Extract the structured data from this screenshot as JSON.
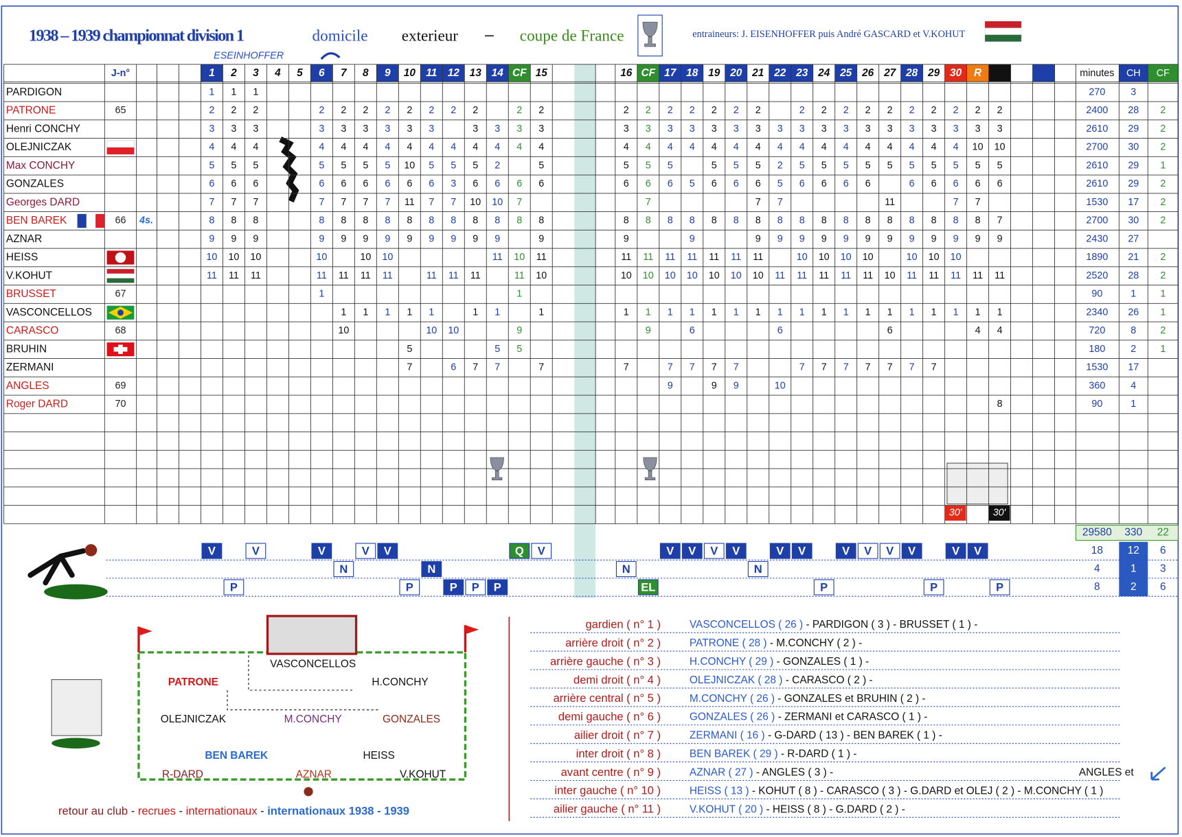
{
  "header": {
    "title": "1938 – 1939 championnat division 1",
    "domicile": "domicile",
    "exterieur": "exterieur",
    "dash": "–",
    "coupe": "coupe de France",
    "coaches": "entraineurs: J. EISENHOFFER puis André GASCARD et V.KOHUT",
    "coach_note": "ESEINHOFFER"
  },
  "table": {
    "jn_header": "J-n°",
    "stat_headers": [
      "minutes",
      "CH",
      "CF"
    ],
    "columns": [
      {
        "label": "1",
        "fill": "#1e3fa8",
        "text": "#1e3fa8",
        "box": "#1e3fa8"
      },
      {
        "label": "2"
      },
      {
        "label": "3"
      },
      {
        "label": "4"
      },
      {
        "label": "5"
      },
      {
        "label": "6",
        "fill": "#1e3fa8",
        "text": "#1e3fa8",
        "box": "#1e3fa8"
      },
      {
        "label": "7"
      },
      {
        "label": "8"
      },
      {
        "label": "9",
        "fill": "#1e3fa8",
        "text": "#1e3fa8",
        "box": "#1e3fa8"
      },
      {
        "label": "10"
      },
      {
        "label": "11",
        "fill": "#1e3fa8",
        "text": "#1e3fa8",
        "box": "#1e3fa8"
      },
      {
        "label": "12",
        "fill": "#1e3fa8",
        "text": "#1e3fa8",
        "box": "#1e3fa8"
      },
      {
        "label": "13"
      },
      {
        "label": "14",
        "fill": "#1e3fa8",
        "text": "#1e3fa8",
        "box": "#1e3fa8"
      },
      {
        "label": "CF",
        "fill": "#2f8f2f",
        "text": "#2f8f2f",
        "box": "#2f8f2f"
      },
      {
        "label": "15"
      },
      {
        "label": "16"
      },
      {
        "label": "CF",
        "fill": "#2f8f2f",
        "text": "#2f8f2f",
        "box": "#2f8f2f"
      },
      {
        "label": "17",
        "fill": "#1e3fa8",
        "text": "#1e3fa8",
        "box": "#1e3fa8"
      },
      {
        "label": "18",
        "fill": "#1e3fa8",
        "text": "#1e3fa8",
        "box": "#1e3fa8"
      },
      {
        "label": "19"
      },
      {
        "label": "20",
        "fill": "#1e3fa8",
        "text": "#1e3fa8",
        "box": "#1e3fa8"
      },
      {
        "label": "21"
      },
      {
        "label": "22",
        "fill": "#1e3fa8",
        "text": "#1e3fa8",
        "box": "#1e3fa8"
      },
      {
        "label": "23",
        "fill": "#1e3fa8",
        "text": "#1e3fa8",
        "box": "#1e3fa8"
      },
      {
        "label": "24"
      },
      {
        "label": "25",
        "fill": "#1e3fa8",
        "text": "#1e3fa8",
        "box": "#1e3fa8"
      },
      {
        "label": "26"
      },
      {
        "label": "27"
      },
      {
        "label": "28",
        "fill": "#1e3fa8",
        "text": "#1e3fa8",
        "box": "#1e3fa8"
      },
      {
        "label": "29"
      },
      {
        "label": "30",
        "fill": "#e22a1a",
        "text": "#1e3fa8",
        "box": "#1e3fa8"
      },
      {
        "label": "R",
        "fill": "#f07b12",
        "box": "#1e3fa8"
      },
      {
        "label": null,
        "fill": "#111111"
      }
    ],
    "players": [
      {
        "name": "PARDIGON",
        "color": "#111",
        "values": [
          1,
          1,
          1,
          null,
          null,
          null,
          null,
          null,
          null,
          null,
          null,
          null,
          null,
          null,
          null,
          null,
          null,
          null,
          null,
          null,
          null,
          null,
          null,
          null,
          null,
          null,
          null,
          null,
          null,
          null,
          null,
          null,
          null,
          null
        ],
        "minutes": 270,
        "ch": 3
      },
      {
        "name": "PATRONE",
        "color": "#d01a1a",
        "jn": 65,
        "values": [
          2,
          2,
          2,
          null,
          null,
          2,
          2,
          2,
          2,
          2,
          2,
          2,
          2,
          null,
          2,
          2,
          2,
          2,
          2,
          2,
          2,
          2,
          2,
          null,
          2,
          2,
          2,
          2,
          2,
          2,
          2,
          2,
          2,
          2
        ],
        "minutes": 2400,
        "ch": 28,
        "cf": 2
      },
      {
        "name": "Henri CONCHY",
        "color": "#111",
        "values": [
          3,
          3,
          3,
          null,
          null,
          3,
          3,
          3,
          3,
          3,
          3,
          null,
          3,
          3,
          3,
          3,
          3,
          3,
          3,
          3,
          3,
          3,
          3,
          3,
          3,
          3,
          3,
          3,
          3,
          3,
          3,
          3,
          3,
          3
        ],
        "minutes": 2610,
        "ch": 29,
        "cf": 2
      },
      {
        "name": "OLEJNICZAK",
        "color": "#111",
        "values": [
          4,
          4,
          4,
          null,
          null,
          4,
          4,
          4,
          4,
          4,
          4,
          4,
          4,
          4,
          4,
          4,
          4,
          4,
          4,
          4,
          4,
          4,
          4,
          4,
          4,
          4,
          4,
          4,
          4,
          4,
          4,
          4,
          10,
          10
        ],
        "minutes": 2700,
        "ch": 30,
        "cf": 2
      },
      {
        "name": "Max CONCHY",
        "color": "#8b1a3a",
        "values": [
          5,
          5,
          5,
          null,
          null,
          5,
          5,
          5,
          5,
          10,
          5,
          5,
          5,
          2,
          null,
          5,
          5,
          5,
          5,
          null,
          5,
          5,
          5,
          2,
          5,
          5,
          5,
          5,
          5,
          5,
          5,
          5,
          5,
          5
        ],
        "minutes": 2610,
        "ch": 29,
        "cf": 1
      },
      {
        "name": "GONZALES",
        "color": "#111",
        "values": [
          6,
          6,
          6,
          null,
          null,
          6,
          6,
          6,
          6,
          6,
          6,
          3,
          6,
          6,
          6,
          6,
          6,
          6,
          6,
          5,
          6,
          6,
          6,
          5,
          6,
          6,
          6,
          6,
          null,
          6,
          6,
          6,
          6,
          6
        ],
        "minutes": 2610,
        "ch": 29,
        "cf": 2
      },
      {
        "name": "Georges DARD",
        "color": "#8b1a3a",
        "values": [
          7,
          7,
          7,
          null,
          null,
          7,
          7,
          7,
          7,
          11,
          7,
          7,
          10,
          10,
          7,
          null,
          null,
          7,
          null,
          null,
          null,
          null,
          7,
          7,
          null,
          null,
          null,
          null,
          11,
          null,
          null,
          7,
          7,
          null
        ],
        "minutes": 1530,
        "ch": 17,
        "cf": 2
      },
      {
        "name": "BEN BAREK",
        "color": "#d01a1a",
        "jn": 66,
        "extra": "4s.",
        "values": [
          8,
          8,
          8,
          null,
          null,
          8,
          8,
          8,
          8,
          8,
          8,
          8,
          8,
          8,
          8,
          8,
          8,
          8,
          8,
          8,
          8,
          8,
          8,
          8,
          8,
          8,
          8,
          8,
          8,
          8,
          8,
          8,
          8,
          7
        ],
        "minutes": 2700,
        "ch": 30,
        "cf": 2
      },
      {
        "name": "AZNAR",
        "color": "#111",
        "values": [
          9,
          9,
          9,
          null,
          null,
          9,
          9,
          9,
          9,
          9,
          9,
          9,
          9,
          9,
          null,
          9,
          9,
          null,
          null,
          9,
          null,
          null,
          9,
          9,
          9,
          9,
          9,
          9,
          9,
          9,
          9,
          9,
          9,
          9
        ],
        "minutes": 2430,
        "ch": 27
      },
      {
        "name": "HEISS",
        "color": "#111",
        "values": [
          10,
          10,
          10,
          null,
          null,
          10,
          null,
          10,
          10,
          null,
          null,
          null,
          null,
          11,
          10,
          11,
          11,
          11,
          11,
          11,
          11,
          11,
          11,
          null,
          10,
          10,
          10,
          10,
          null,
          10,
          10,
          10,
          null,
          null
        ],
        "minutes": 1890,
        "ch": 21,
        "cf": 2
      },
      {
        "name": "V.KOHUT",
        "color": "#111",
        "values": [
          11,
          11,
          11,
          null,
          null,
          11,
          11,
          11,
          11,
          null,
          11,
          11,
          11,
          null,
          11,
          10,
          10,
          10,
          10,
          10,
          10,
          10,
          10,
          11,
          11,
          11,
          11,
          11,
          10,
          11,
          11,
          11,
          11,
          11
        ],
        "minutes": 2520,
        "ch": 28,
        "cf": 2
      },
      {
        "name": "BRUSSET",
        "color": "#d01a1a",
        "jn": 67,
        "values": [
          null,
          null,
          null,
          null,
          null,
          1,
          null,
          null,
          null,
          null,
          null,
          null,
          null,
          null,
          1,
          null,
          null,
          null,
          null,
          null,
          null,
          null,
          null,
          null,
          null,
          null,
          null,
          null,
          null,
          null,
          null,
          null,
          null,
          null
        ],
        "minutes": 90,
        "ch": 1,
        "cf": 1
      },
      {
        "name": "VASCONCELLOS",
        "color": "#111",
        "values": [
          null,
          null,
          null,
          null,
          null,
          null,
          1,
          1,
          1,
          1,
          1,
          null,
          1,
          1,
          null,
          1,
          1,
          1,
          1,
          1,
          1,
          1,
          1,
          1,
          1,
          1,
          1,
          1,
          1,
          1,
          1,
          1,
          1,
          1
        ],
        "minutes": 2340,
        "ch": 26,
        "cf": 1
      },
      {
        "name": "CARASCO",
        "color": "#d01a1a",
        "jn": 68,
        "values": [
          null,
          null,
          null,
          null,
          null,
          null,
          10,
          null,
          null,
          null,
          10,
          10,
          null,
          null,
          9,
          null,
          null,
          9,
          null,
          6,
          null,
          null,
          null,
          6,
          null,
          null,
          null,
          null,
          6,
          null,
          null,
          null,
          4,
          4
        ],
        "minutes": 720,
        "ch": 8,
        "cf": 2
      },
      {
        "name": "BRUHIN",
        "color": "#111",
        "values": [
          null,
          null,
          null,
          null,
          null,
          null,
          null,
          null,
          null,
          5,
          null,
          null,
          null,
          5,
          5,
          null,
          null,
          null,
          null,
          null,
          null,
          null,
          null,
          null,
          null,
          null,
          null,
          null,
          null,
          null,
          null,
          null,
          null,
          null
        ],
        "minutes": 180,
        "ch": 2,
        "cf": 1
      },
      {
        "name": "ZERMANI",
        "color": "#111",
        "values": [
          null,
          null,
          null,
          null,
          null,
          null,
          null,
          null,
          null,
          7,
          null,
          6,
          7,
          7,
          null,
          7,
          7,
          null,
          7,
          7,
          7,
          7,
          null,
          null,
          7,
          7,
          7,
          7,
          7,
          7,
          7,
          null,
          null,
          null
        ],
        "minutes": 1530,
        "ch": 17
      },
      {
        "name": "ANGLES",
        "color": "#d01a1a",
        "jn": 69,
        "values": [
          null,
          null,
          null,
          null,
          null,
          null,
          null,
          null,
          null,
          null,
          null,
          null,
          null,
          null,
          null,
          null,
          null,
          null,
          9,
          null,
          9,
          9,
          null,
          10,
          null,
          null,
          null,
          null,
          null,
          null,
          null,
          null,
          null,
          null
        ],
        "minutes": 360,
        "ch": 4
      },
      {
        "name": "Roger DARD",
        "color": "#d01a1a",
        "jn": 70,
        "values": [
          null,
          null,
          null,
          null,
          null,
          null,
          null,
          null,
          null,
          null,
          null,
          null,
          null,
          null,
          null,
          null,
          null,
          null,
          null,
          null,
          null,
          null,
          null,
          null,
          null,
          null,
          null,
          null,
          null,
          null,
          null,
          null,
          null,
          8
        ],
        "minutes": 90,
        "ch": 1
      }
    ],
    "extra_time": [
      "30'",
      "30'"
    ],
    "totals": [
      29580,
      330,
      22
    ]
  },
  "results": {
    "top": [
      "V",
      null,
      "V",
      null,
      null,
      "V",
      null,
      "V",
      "V",
      null,
      null,
      null,
      null,
      null,
      "Q",
      "V",
      null,
      null,
      "V",
      "V",
      "V",
      "V",
      null,
      "V",
      "V",
      null,
      "V",
      "V",
      "V",
      "V",
      null,
      "V",
      "V",
      null
    ],
    "middle": [
      null,
      null,
      null,
      null,
      null,
      null,
      "N",
      null,
      null,
      null,
      "N",
      null,
      null,
      null,
      null,
      null,
      "N",
      null,
      null,
      null,
      null,
      null,
      "N",
      null,
      null,
      null,
      null,
      null,
      null,
      null,
      null,
      null,
      null,
      null
    ],
    "bottom": [
      null,
      "P",
      null,
      null,
      null,
      null,
      null,
      null,
      null,
      "P",
      null,
      "P",
      "P",
      "P",
      null,
      null,
      null,
      "EL",
      null,
      null,
      null,
      null,
      null,
      null,
      null,
      "P",
      null,
      null,
      null,
      null,
      "P",
      null,
      null,
      "P"
    ],
    "stats": [
      [
        18,
        12,
        6
      ],
      [
        4,
        1,
        3
      ],
      [
        8,
        2,
        6
      ]
    ]
  },
  "formation": [
    {
      "text": "VASCONCELLOS",
      "color": "#111"
    },
    {
      "text": "PATRONE",
      "color": "#d01a1a"
    },
    {
      "text": "H.CONCHY",
      "color": "#111"
    },
    {
      "text": "OLEJNICZAK",
      "color": "#111"
    },
    {
      "text": "M.CONCHY",
      "color": "#7a2a7a"
    },
    {
      "text": "GONZALES",
      "color": "#8b2a1a"
    },
    {
      "text": "BEN BAREK",
      "color": "#2a6ad0"
    },
    {
      "text": "HEISS",
      "color": "#111"
    },
    {
      "text": "R-DARD",
      "color": "#8b1a1a"
    },
    {
      "text": "AZNAR",
      "color": "#c0301a"
    },
    {
      "text": "V.KOHUT",
      "color": "#111"
    }
  ],
  "footer": [
    {
      "text": "retour au club",
      "color": "#8b1a1a"
    },
    {
      "text": " - ",
      "color": "#111"
    },
    {
      "text": "recrues",
      "color": "#d01a1a"
    },
    {
      "text": " - ",
      "color": "#111"
    },
    {
      "text": "internationaux",
      "color": "#d01a1a"
    },
    {
      "text": " - ",
      "color": "#111"
    },
    {
      "text": "internationaux 1938 - 1939",
      "color": "#2a6ad0"
    }
  ],
  "positions": [
    {
      "label": "gardien ( n° 1 )",
      "main": "VASCONCELLOS ( 26 )",
      "others": " - PARDIGON ( 3 ) - BRUSSET ( 1 ) -"
    },
    {
      "label": "arrière droit ( n° 2 )",
      "main": "PATRONE ( 28 )",
      "others": " - M.CONCHY  ( 2 ) -"
    },
    {
      "label": "arrière gauche ( n° 3 )",
      "main": "H.CONCHY ( 29 )",
      "others": " - GONZALES ( 1 ) -"
    },
    {
      "label": "demi droit ( n° 4 )",
      "main": "OLEJNICZAK ( 28 )",
      "others": " -  CARASCO ( 2 ) -"
    },
    {
      "label": "arrière central ( n° 5 )",
      "main": "M.CONCHY ( 26 )",
      "others": " -  GONZALES et BRUHIN ( 2 ) -"
    },
    {
      "label": "demi  gauche ( n° 6 )",
      "main": "GONZALES ( 26 )",
      "others": " - ZERMANI et CARASCO  ( 1 ) -"
    },
    {
      "label": "ailier droit  ( n° 7 )",
      "main": "ZERMANI ( 16 )",
      "others": " - G-DARD ( 13 ) - BEN BAREK ( 1 ) -"
    },
    {
      "label": "inter droit  ( n° 8 )",
      "main": "BEN BAREK ( 29 )",
      "others": " -  R-DARD ( 1 ) -"
    },
    {
      "label": "avant centre  ( n° 9 )",
      "main": "AZNAR ( 27 )",
      "others": " - ANGLES ( 3 ) -"
    },
    {
      "label": "inter gauche  ( n° 10 )",
      "main": "HEISS ( 13 )",
      "others": " - KOHUT ( 8 ) - CARASCO ( 3 ) - G.DARD et OLEJ ( 2 ) - M.CONCHY  ( 1 )"
    },
    {
      "label": "ailier gauche  ( n° 11 )",
      "main": "V.KOHUT ( 20 )",
      "others": " -  HEISS ( 8 ) -  G.DARD ( 2 ) -"
    }
  ],
  "note": "ANGLES et"
}
